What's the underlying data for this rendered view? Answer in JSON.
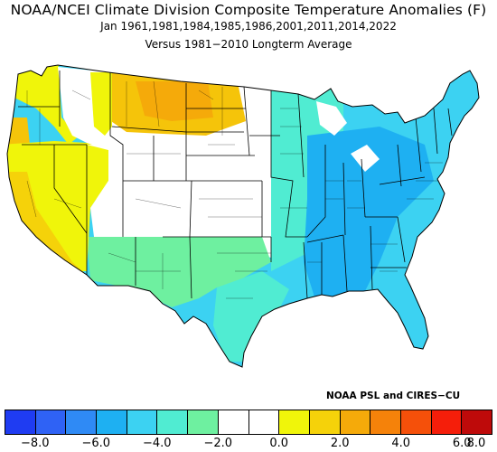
{
  "header": {
    "title": "NOAA/NCEI Climate Division Composite Temperature Anomalies (F)",
    "subtitle": "Jan   1961,1981,1984,1985,1986,2001,2011,2014,2022",
    "reference": "Versus 1981−2010 Longterm Average"
  },
  "credit": "NOAA PSL and CIRES−CU",
  "legend": {
    "colors": [
      "#1f3cf2",
      "#2f62f5",
      "#2f8af5",
      "#1eb0f2",
      "#3cd2f2",
      "#50ecd2",
      "#6ef0a0",
      "#ffffff",
      "#ffffff",
      "#f0f50a",
      "#f5d20a",
      "#f5aa0a",
      "#f5820a",
      "#f5500a",
      "#f51e0a",
      "#be0a0a"
    ],
    "ticks": [
      {
        "label": "−8.0",
        "index": 1
      },
      {
        "label": "−6.0",
        "index": 3
      },
      {
        "label": "−4.0",
        "index": 5
      },
      {
        "label": "−2.0",
        "index": 7
      },
      {
        "label": "0.0",
        "index": 9
      },
      {
        "label": "2.0",
        "index": 11
      },
      {
        "label": "4.0",
        "index": 13
      },
      {
        "label": "6.0",
        "index": 15
      },
      {
        "label": "8.0",
        "index": 16
      }
    ]
  },
  "map": {
    "region": "contiguous-us-climate-divisions",
    "regions": [
      {
        "id": "northwest-coast",
        "color": "#f0f50a"
      },
      {
        "id": "california-great-basin",
        "color": "#f0f50a"
      },
      {
        "id": "northern-rockies-plains",
        "color": "#f5c40a"
      },
      {
        "id": "central-rockies-plains",
        "color": "#ffffff"
      },
      {
        "id": "southwest-texas",
        "color": "#6ef0a0"
      },
      {
        "id": "midwest-upper",
        "color": "#50ecd2"
      },
      {
        "id": "mississippi-valley-east",
        "color": "#1eb0f2"
      },
      {
        "id": "northeast",
        "color": "#3cd2f2"
      },
      {
        "id": "southeast",
        "color": "#3cd2f2"
      }
    ]
  }
}
